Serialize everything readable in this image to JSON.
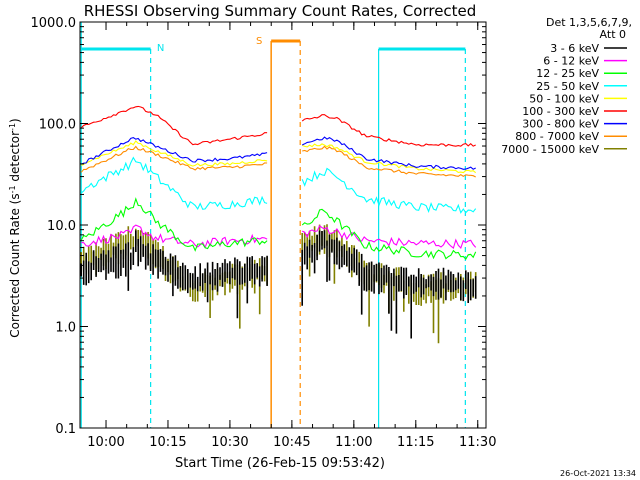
{
  "chart_data": {
    "type": "line",
    "title": "RHESSI Observing Summary Count Rates, Corrected",
    "xlabel": "Start Time (26-Feb-15 09:53:42)",
    "ylabel_main": "Corrected Count Rate (s",
    "ylabel_sup1": "-1",
    "ylabel_mid": " detector",
    "ylabel_sup2": "-1",
    "ylabel_end": ")",
    "yscale": "log",
    "ylim": [
      0.1,
      1000.0
    ],
    "xlim": [
      "09:53:42",
      "11:32:00"
    ],
    "y_ticks": [
      "1000.0",
      "100.0",
      "10.0",
      "1.0",
      "0.1"
    ],
    "x_ticks": [
      "10:00",
      "10:15",
      "10:30",
      "10:45",
      "11:00",
      "11:15",
      "11:30"
    ],
    "grid": false,
    "legend": {
      "header1": "Det 1,3,5,6,7,9,",
      "header2": "Att 0",
      "placement": "top-right"
    },
    "gaps": [
      [
        "10:39:30",
        "10:47:30"
      ]
    ],
    "series": [
      {
        "name": "3 - 6 keV",
        "color": "#000000",
        "style": "noisy-band",
        "values": [
          [
            9.9,
            4.0
          ],
          [
            10.1,
            5.3
          ],
          [
            10.12,
            6.6
          ],
          [
            10.2,
            4.8
          ],
          [
            10.35,
            3.0
          ],
          [
            10.5,
            3.6
          ],
          [
            10.65,
            3.8
          ],
          [
            10.78,
            6.0
          ],
          [
            10.8,
            5.2
          ],
          [
            10.88,
            7.2
          ],
          [
            10.93,
            6.4
          ],
          [
            11.05,
            3.6
          ],
          [
            11.25,
            2.9
          ],
          [
            11.5,
            2.8
          ]
        ]
      },
      {
        "name": "6 - 12 keV",
        "color": "#ff00ff",
        "style": "noisy",
        "values": [
          [
            9.9,
            6.5
          ],
          [
            10.1,
            8.2
          ],
          [
            10.12,
            9.5
          ],
          [
            10.2,
            7.5
          ],
          [
            10.35,
            6.4
          ],
          [
            10.5,
            7.0
          ],
          [
            10.65,
            7.3
          ],
          [
            10.78,
            8.5
          ],
          [
            10.8,
            8.2
          ],
          [
            10.88,
            9.3
          ],
          [
            10.93,
            8.6
          ],
          [
            11.05,
            7.0
          ],
          [
            11.25,
            6.6
          ],
          [
            11.5,
            6.5
          ]
        ]
      },
      {
        "name": "12 - 25 keV",
        "color": "#00ff00",
        "style": "noisy",
        "values": [
          [
            9.9,
            7.0
          ],
          [
            10.1,
            15.0
          ],
          [
            10.12,
            18.0
          ],
          [
            10.2,
            11.0
          ],
          [
            10.35,
            5.8
          ],
          [
            10.5,
            6.6
          ],
          [
            10.65,
            7.1
          ],
          [
            10.78,
            10.0
          ],
          [
            10.8,
            9.5
          ],
          [
            10.88,
            14.0
          ],
          [
            10.93,
            11.0
          ],
          [
            11.05,
            6.2
          ],
          [
            11.25,
            5.3
          ],
          [
            11.5,
            5.0
          ]
        ]
      },
      {
        "name": "25 - 50 keV",
        "color": "#00ffff",
        "style": "noisy",
        "values": [
          [
            9.9,
            22.0
          ],
          [
            10.1,
            40.0
          ],
          [
            10.12,
            44.0
          ],
          [
            10.2,
            30.0
          ],
          [
            10.35,
            15.0
          ],
          [
            10.5,
            16.0
          ],
          [
            10.65,
            18.0
          ],
          [
            10.78,
            28.0
          ],
          [
            10.8,
            27.0
          ],
          [
            10.88,
            34.0
          ],
          [
            10.93,
            30.0
          ],
          [
            11.05,
            18.0
          ],
          [
            11.25,
            15.0
          ],
          [
            11.5,
            14.0
          ]
        ]
      },
      {
        "name": "50 - 100 keV",
        "color": "#ffff00",
        "style": "smooth",
        "values": [
          [
            9.9,
            40.0
          ],
          [
            10.1,
            62.0
          ],
          [
            10.12,
            66.0
          ],
          [
            10.2,
            54.0
          ],
          [
            10.35,
            39.0
          ],
          [
            10.5,
            40.0
          ],
          [
            10.65,
            44.0
          ],
          [
            10.78,
            58.0
          ],
          [
            10.8,
            60.0
          ],
          [
            10.88,
            62.0
          ],
          [
            10.93,
            58.0
          ],
          [
            11.05,
            42.0
          ],
          [
            11.25,
            36.0
          ],
          [
            11.5,
            33.0
          ]
        ]
      },
      {
        "name": "100 - 300 keV",
        "color": "#ff0000",
        "style": "smooth",
        "values": [
          [
            9.9,
            92.0
          ],
          [
            10.1,
            142.0
          ],
          [
            10.12,
            148.0
          ],
          [
            10.2,
            122.0
          ],
          [
            10.35,
            62.0
          ],
          [
            10.5,
            70.0
          ],
          [
            10.65,
            80.0
          ],
          [
            10.78,
            100.0
          ],
          [
            10.8,
            108.0
          ],
          [
            10.88,
            120.0
          ],
          [
            10.93,
            112.0
          ],
          [
            11.05,
            75.0
          ],
          [
            11.25,
            62.0
          ],
          [
            11.5,
            61.0
          ]
        ]
      },
      {
        "name": "300 - 800 keV",
        "color": "#0000ff",
        "style": "smooth",
        "values": [
          [
            9.9,
            40.0
          ],
          [
            10.1,
            70.0
          ],
          [
            10.12,
            72.0
          ],
          [
            10.2,
            60.0
          ],
          [
            10.35,
            43.0
          ],
          [
            10.5,
            45.0
          ],
          [
            10.65,
            50.0
          ],
          [
            10.78,
            62.0
          ],
          [
            10.8,
            64.0
          ],
          [
            10.88,
            72.0
          ],
          [
            10.93,
            68.0
          ],
          [
            11.05,
            45.0
          ],
          [
            11.25,
            38.0
          ],
          [
            11.5,
            36.0
          ]
        ]
      },
      {
        "name": "800 - 7000 keV",
        "color": "#ff8c00",
        "style": "smooth",
        "values": [
          [
            9.9,
            34.0
          ],
          [
            10.1,
            56.0
          ],
          [
            10.12,
            58.0
          ],
          [
            10.2,
            50.0
          ],
          [
            10.35,
            36.0
          ],
          [
            10.5,
            37.0
          ],
          [
            10.65,
            40.0
          ],
          [
            10.78,
            52.0
          ],
          [
            10.8,
            53.0
          ],
          [
            10.88,
            58.0
          ],
          [
            10.93,
            55.0
          ],
          [
            11.05,
            37.0
          ],
          [
            11.25,
            32.0
          ],
          [
            11.5,
            30.0
          ]
        ]
      },
      {
        "name": "7000 - 15000 keV",
        "color": "#808000",
        "style": "noisy-band",
        "values": [
          [
            9.9,
            4.4
          ],
          [
            10.1,
            7.5
          ],
          [
            10.12,
            8.0
          ],
          [
            10.2,
            5.6
          ],
          [
            10.35,
            2.5
          ],
          [
            10.5,
            3.2
          ],
          [
            10.65,
            3.6
          ],
          [
            10.78,
            7.0
          ],
          [
            10.8,
            6.6
          ],
          [
            10.88,
            8.0
          ],
          [
            10.93,
            7.5
          ],
          [
            11.05,
            3.4
          ],
          [
            11.25,
            2.6
          ],
          [
            11.5,
            2.6
          ]
        ]
      }
    ],
    "annotations": [
      {
        "label": "N",
        "color": "#00e5ee",
        "line_style": "solid-then-dashed"
      },
      {
        "label": "S",
        "color": "#ff8c00",
        "line_style": "solid-then-dashed"
      }
    ]
  },
  "footer": {
    "timestamp": "26-Oct-2021 13:34"
  }
}
